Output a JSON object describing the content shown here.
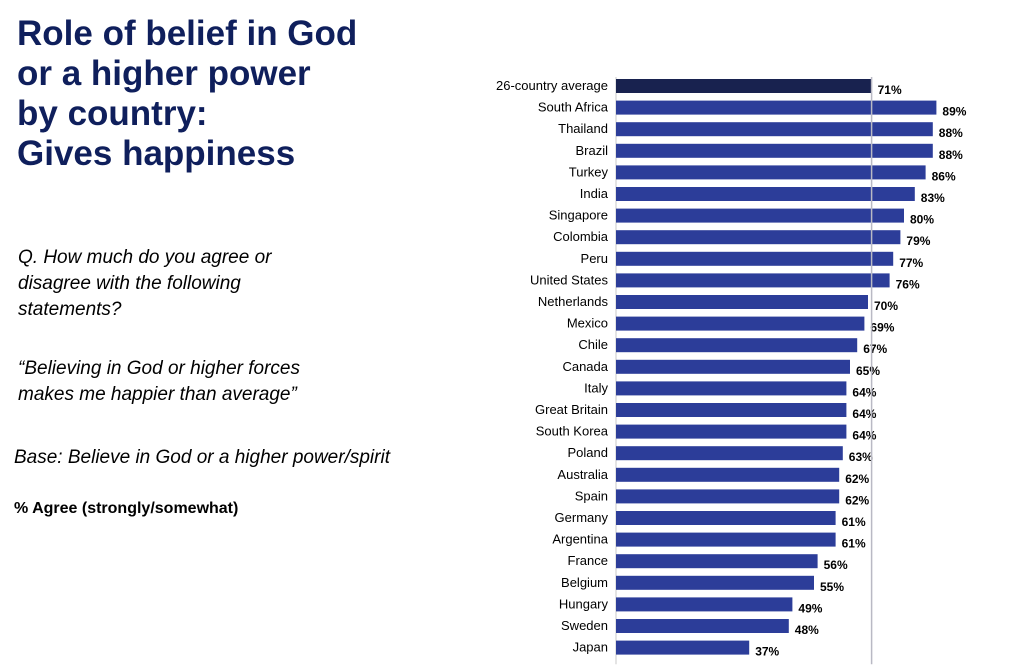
{
  "title": "Role of belief in God\nor a higher power\nby country:\nGives happiness",
  "question": "Q. How much do you agree or disagree with the following statements?",
  "statement": "“Believing in God or higher forces makes me happier than average”",
  "base": "Base: Believe in God or a higher power/spirit",
  "measure": "% Agree (strongly/somewhat)",
  "colors": {
    "title": "#0f1f5c",
    "average_bar": "#18224f",
    "country_bar": "#2c3d99",
    "reference_line": "#b9b9c4"
  },
  "chart_data": {
    "type": "bar",
    "orientation": "horizontal",
    "categories": [
      "26-country average",
      "South Africa",
      "Thailand",
      "Brazil",
      "Turkey",
      "India",
      "Singapore",
      "Colombia",
      "Peru",
      "United States",
      "Netherlands",
      "Mexico",
      "Chile",
      "Canada",
      "Italy",
      "Great Britain",
      "South Korea",
      "Poland",
      "Australia",
      "Spain",
      "Germany",
      "Argentina",
      "France",
      "Belgium",
      "Hungary",
      "Sweden",
      "Japan"
    ],
    "values": [
      71,
      89,
      88,
      88,
      86,
      83,
      80,
      79,
      77,
      76,
      70,
      69,
      67,
      65,
      64,
      64,
      64,
      63,
      62,
      62,
      61,
      61,
      56,
      55,
      49,
      48,
      37
    ],
    "value_labels": [
      "71%",
      "89%",
      "88%",
      "88%",
      "86%",
      "83%",
      "80%",
      "79%",
      "77%",
      "76%",
      "70%",
      "69%",
      "67%",
      "65%",
      "64%",
      "64%",
      "64%",
      "63%",
      "62%",
      "62%",
      "61%",
      "61%",
      "56%",
      "55%",
      "49%",
      "48%",
      "37%"
    ],
    "unit": "%",
    "highlight": "26-country average",
    "reference_line": 71,
    "xlim": [
      0,
      100
    ],
    "grid": false,
    "legend": "none"
  }
}
